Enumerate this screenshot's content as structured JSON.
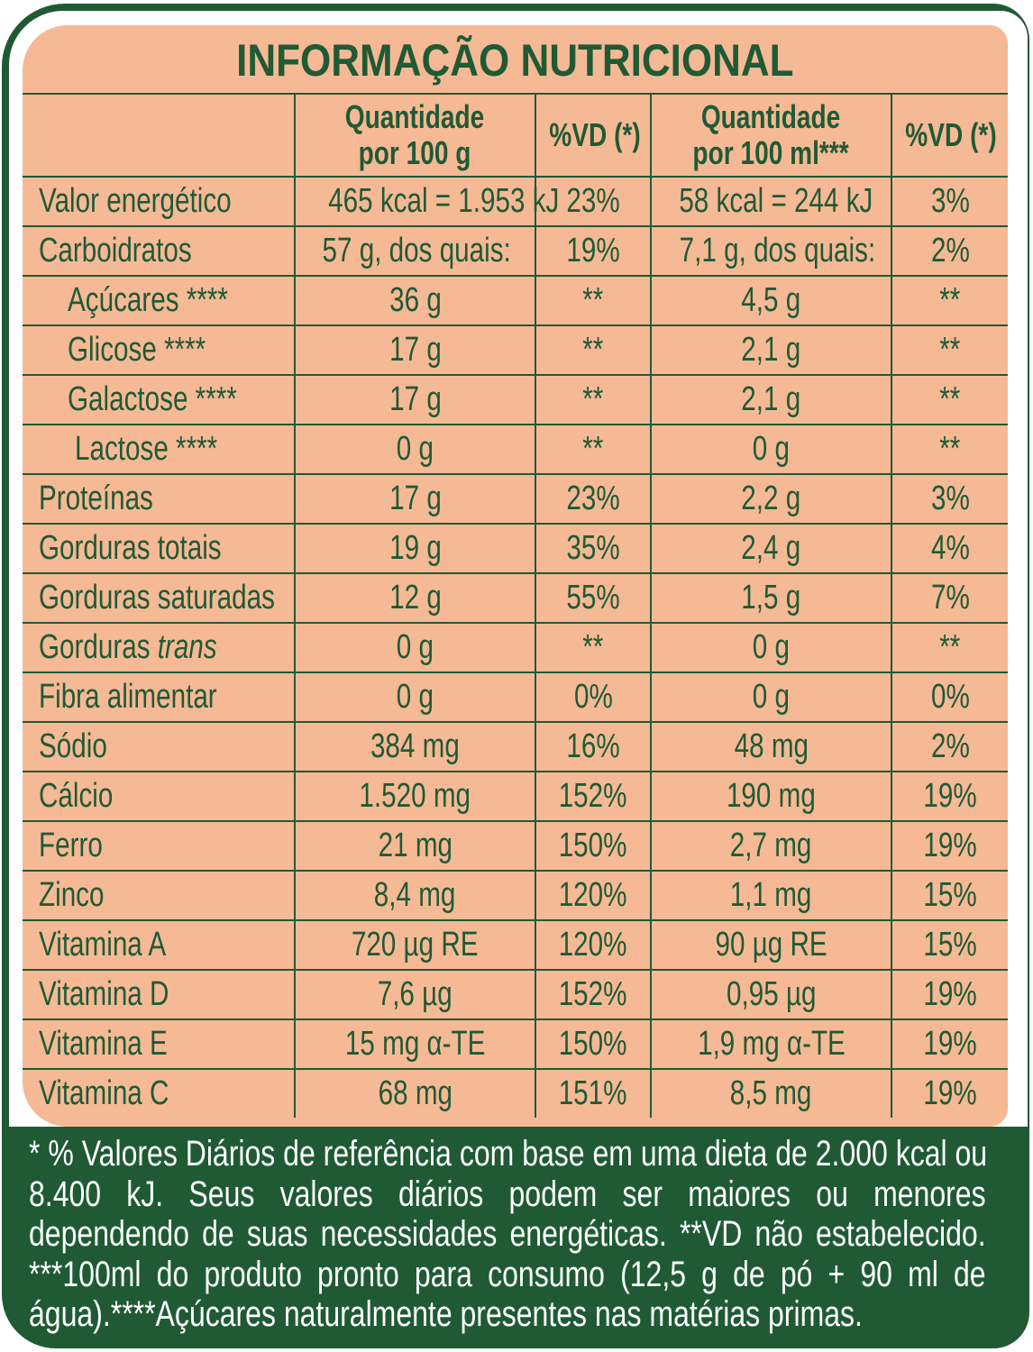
{
  "title": "INFORMAÇÃO NUTRICIONAL",
  "colors": {
    "green": "#1f5a35",
    "peach": "#f6b995",
    "white": "#ffffff"
  },
  "headers": [
    "",
    "Quantidade por 100 g",
    "%VD (*)",
    "Quantidade por 100 ml***",
    "%VD (*)"
  ],
  "header_lines": {
    "q100g": [
      "Quantidade",
      "por 100 g"
    ],
    "q100ml": [
      "Quantidade",
      "por 100 ml***"
    ],
    "vd": "%VD (*)"
  },
  "rows": [
    {
      "label": "Valor energético",
      "q100g": "465 kcal = 1.953 kJ",
      "vd1": "23%",
      "q100ml": "58 kcal = 244 kJ",
      "vd2": "3%"
    },
    {
      "label": "Carboidratos",
      "q100g": "57 g, dos quais:",
      "vd1": "19%",
      "q100ml": "7,1 g, dos quais:",
      "vd2": "2%"
    },
    {
      "label": "Açúcares ****",
      "q100g": "36 g",
      "vd1": "**",
      "q100ml": "4,5 g",
      "vd2": "**"
    },
    {
      "label": "Glicose ****",
      "q100g": "17 g",
      "vd1": "**",
      "q100ml": "2,1 g",
      "vd2": "**"
    },
    {
      "label": "Galactose ****",
      "q100g": "17 g",
      "vd1": "**",
      "q100ml": "2,1 g",
      "vd2": "**"
    },
    {
      "label": "Lactose ****",
      "q100g": "0 g",
      "vd1": "**",
      "q100ml": "0 g",
      "vd2": "**"
    },
    {
      "label": "Proteínas",
      "q100g": "17 g",
      "vd1": "23%",
      "q100ml": "2,2 g",
      "vd2": "3%"
    },
    {
      "label": "Gorduras totais",
      "q100g": "19 g",
      "vd1": "35%",
      "q100ml": "2,4 g",
      "vd2": "4%"
    },
    {
      "label": "Gorduras saturadas",
      "q100g": "12 g",
      "vd1": "55%",
      "q100ml": "1,5 g",
      "vd2": "7%"
    },
    {
      "label": "Gorduras trans",
      "q100g": "0 g",
      "vd1": "**",
      "q100ml": "0 g",
      "vd2": "**"
    },
    {
      "label": "Fibra alimentar",
      "q100g": "0 g",
      "vd1": "0%",
      "q100ml": "0 g",
      "vd2": "0%"
    },
    {
      "label": "Sódio",
      "q100g": "384 mg",
      "vd1": "16%",
      "q100ml": "48 mg",
      "vd2": "2%"
    },
    {
      "label": "Cálcio",
      "q100g": "1.520 mg",
      "vd1": "152%",
      "q100ml": "190 mg",
      "vd2": "19%"
    },
    {
      "label": "Ferro",
      "q100g": "21 mg",
      "vd1": "150%",
      "q100ml": "2,7 mg",
      "vd2": "19%"
    },
    {
      "label": "Zinco",
      "q100g": "8,4 mg",
      "vd1": "120%",
      "q100ml": "1,1 mg",
      "vd2": "15%"
    },
    {
      "label": "Vitamina A",
      "q100g": "720 µg RE",
      "vd1": "120%",
      "q100ml": "90 µg RE",
      "vd2": "15%"
    },
    {
      "label": "Vitamina D",
      "q100g": "7,6 µg",
      "vd1": "152%",
      "q100ml": "0,95 µg",
      "vd2": "19%"
    },
    {
      "label": "Vitamina E",
      "q100g": "15 mg α-TE",
      "vd1": "150%",
      "q100ml": "1,9 mg α-TE",
      "vd2": "19%"
    },
    {
      "label": "Vitamina C",
      "q100g": "68 mg",
      "vd1": "151%",
      "q100ml": "8,5 mg",
      "vd2": "19%"
    }
  ],
  "footnote_lines": [
    "* % Valores Diários de referência com base em uma dieta de 2.000 kcal ou",
    "8.400 kJ. Seus valores diários podem ser maiores ou menores",
    "dependendo de suas necessidades energéticas. **VD não estabelecido.",
    "***100ml do produto pronto para consumo (12,5 g de pó + 90 ml de",
    "água).****Açúcares naturalmente presentes nas matérias primas."
  ]
}
